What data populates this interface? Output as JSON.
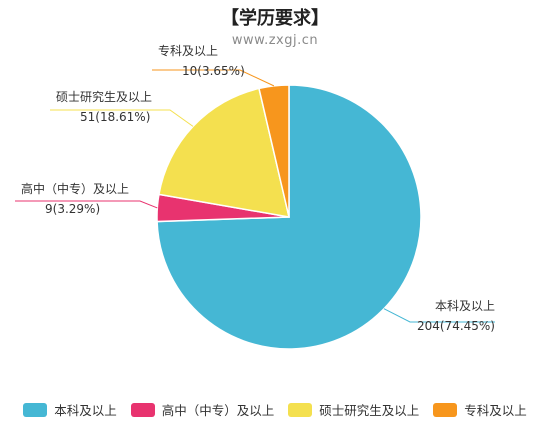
{
  "chart_data": {
    "type": "pie",
    "title": "【学历要求】",
    "subtitle": "www.zxgj.cn",
    "legend_position": "bottom",
    "slices": [
      {
        "name": "本科及以上",
        "value": 204,
        "percent_label": "204(74.45%)",
        "color": "#45b7d4"
      },
      {
        "name": "高中（中专）及以上",
        "value": 9,
        "percent_label": "9(3.29%)",
        "color": "#e8336f"
      },
      {
        "name": "硕士研究生及以上",
        "value": 51,
        "percent_label": "51(18.61%)",
        "color": "#f4e04f"
      },
      {
        "name": "专科及以上",
        "value": 10,
        "percent_label": "10(3.65%)",
        "color": "#f7961d"
      }
    ]
  }
}
